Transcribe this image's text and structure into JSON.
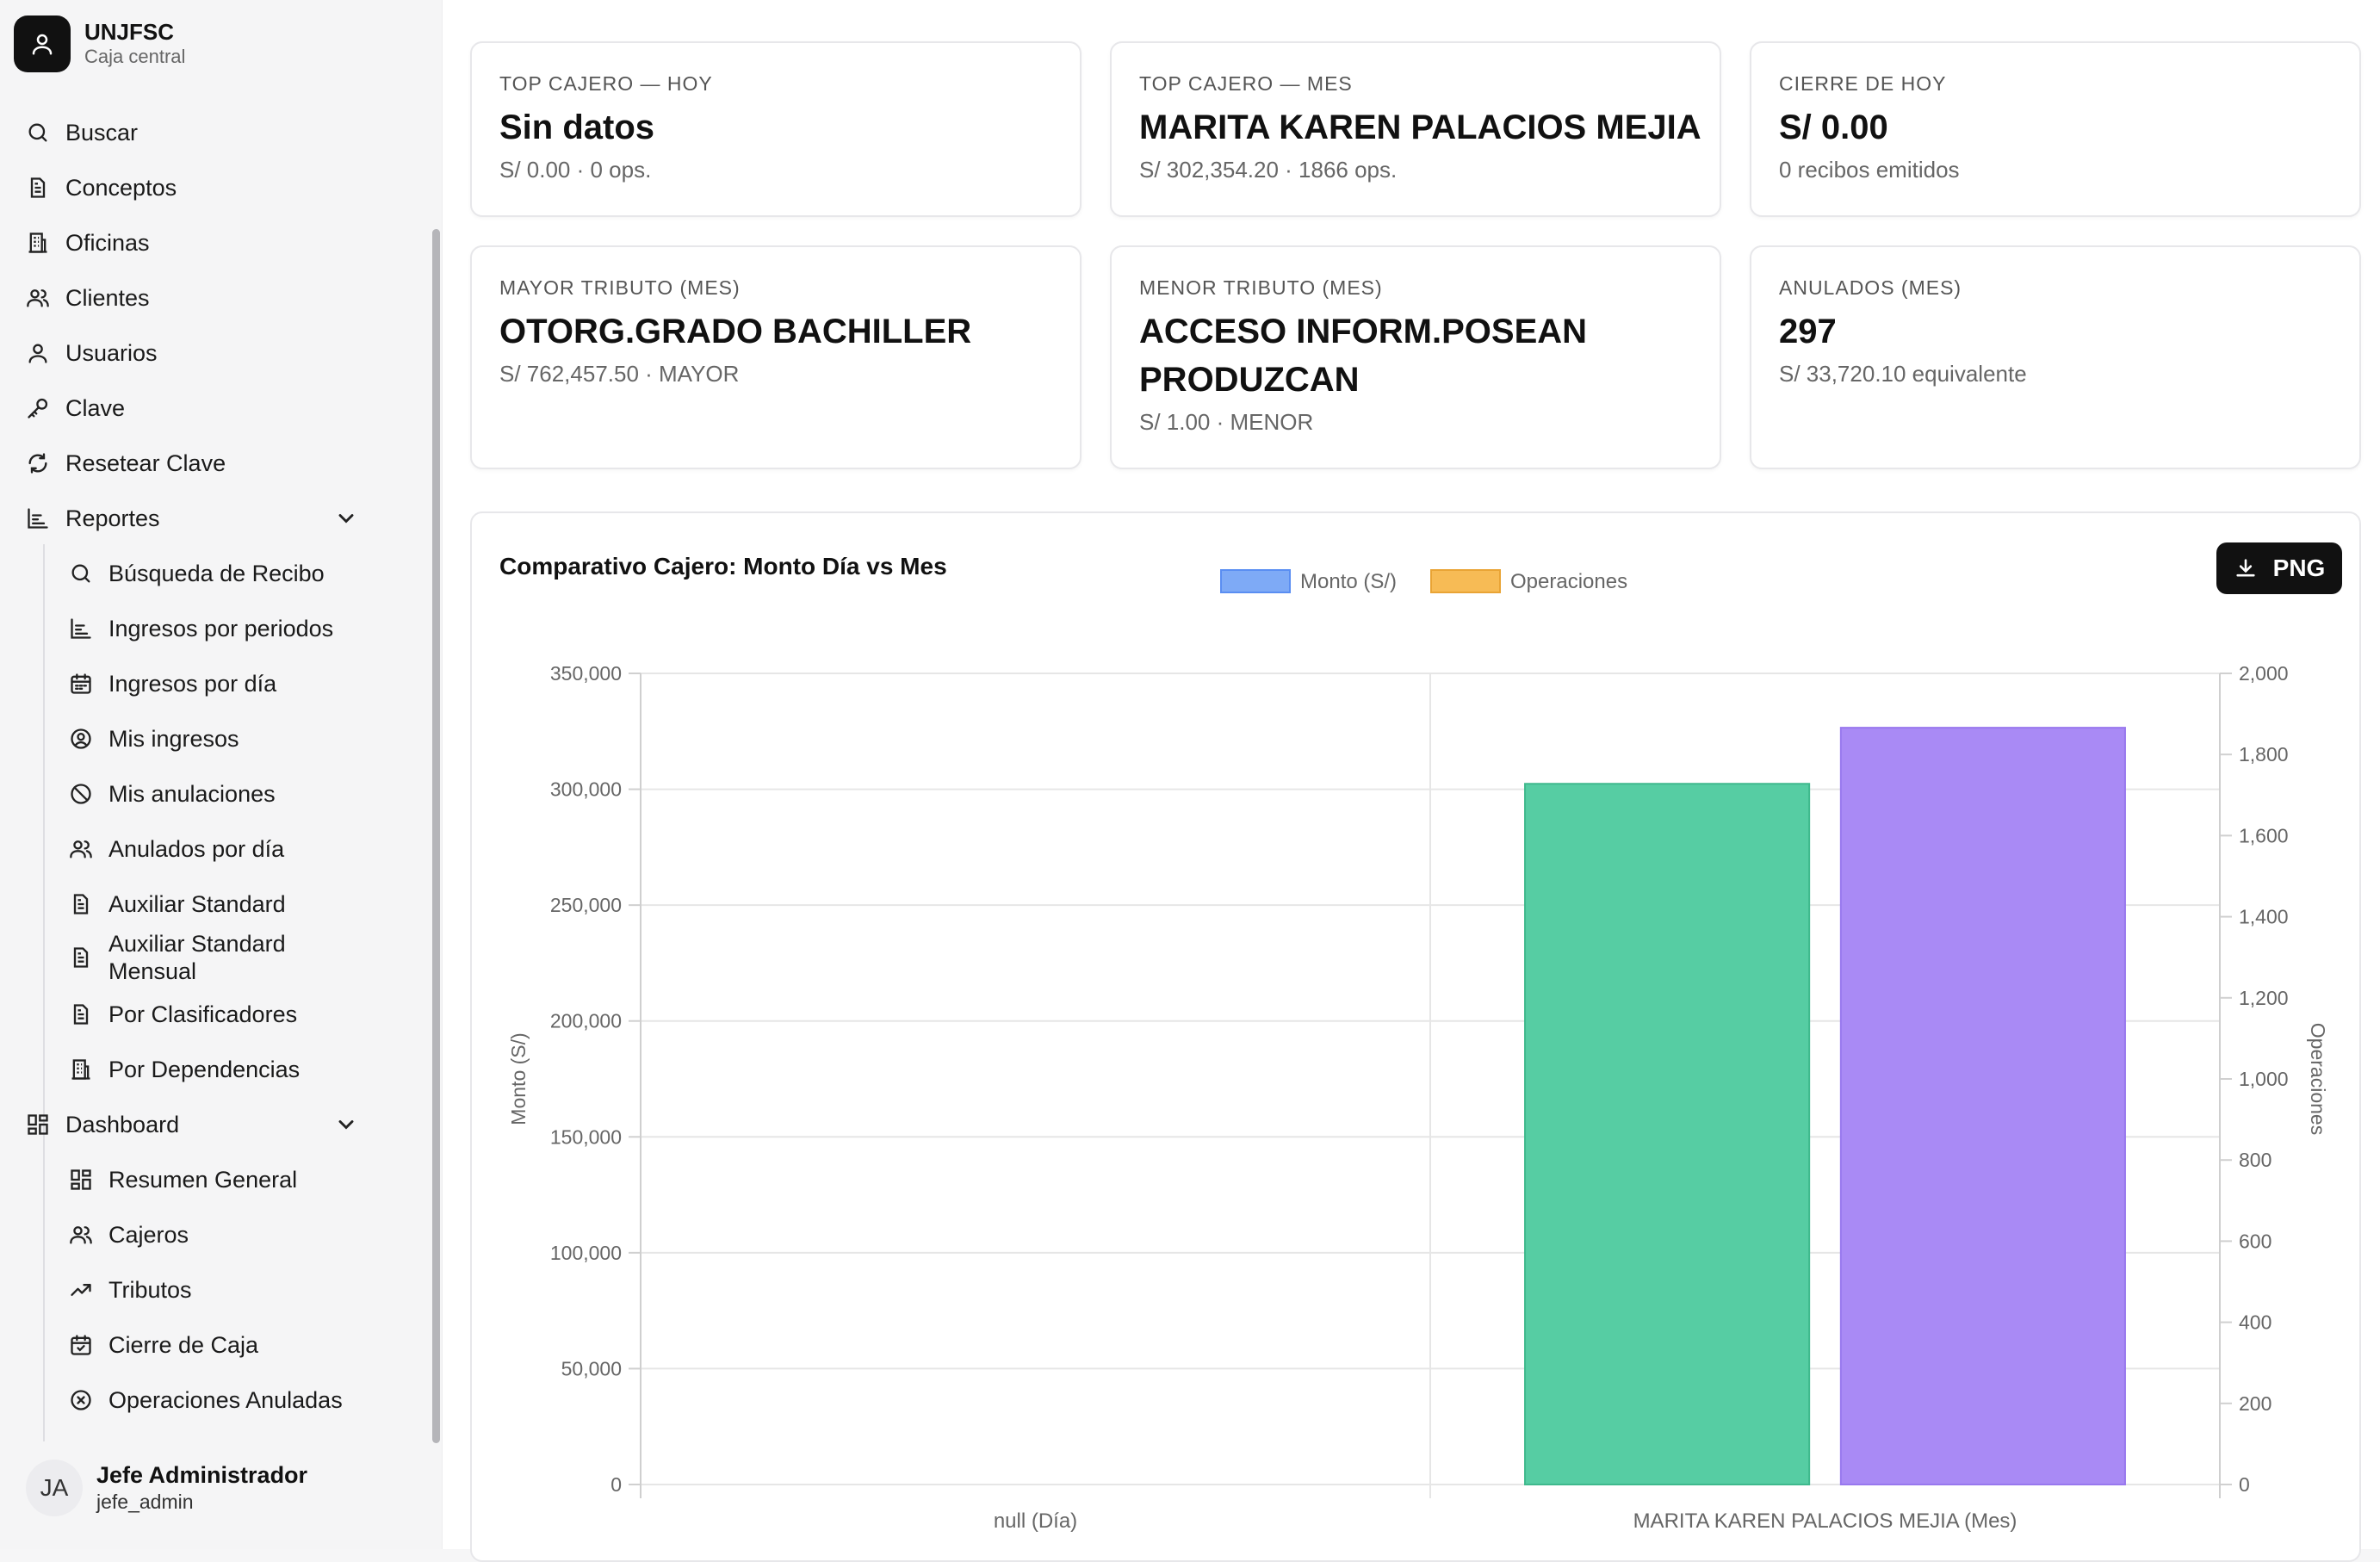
{
  "brand": {
    "name": "UNJFSC",
    "subtitle": "Caja central"
  },
  "sidebar": {
    "items": [
      {
        "label": "Buscar",
        "icon": "search-icon"
      },
      {
        "label": "Conceptos",
        "icon": "file-icon"
      },
      {
        "label": "Oficinas",
        "icon": "building-icon"
      },
      {
        "label": "Clientes",
        "icon": "users-icon"
      },
      {
        "label": "Usuarios",
        "icon": "user-icon"
      },
      {
        "label": "Clave",
        "icon": "key-icon"
      },
      {
        "label": "Resetear Clave",
        "icon": "refresh-icon"
      },
      {
        "label": "Reportes",
        "icon": "chart-icon"
      }
    ],
    "reportes": [
      {
        "label": "Búsqueda de Recibo",
        "icon": "search-icon"
      },
      {
        "label": "Ingresos por periodos",
        "icon": "chart-icon"
      },
      {
        "label": "Ingresos por día",
        "icon": "calendar-icon"
      },
      {
        "label": "Mis ingresos",
        "icon": "user-circle-icon"
      },
      {
        "label": "Mis anulaciones",
        "icon": "ban-icon"
      },
      {
        "label": "Anulados por día",
        "icon": "users-icon"
      },
      {
        "label": "Auxiliar Standard",
        "icon": "file-icon"
      },
      {
        "label_line1": "Auxiliar Standard",
        "label_line2": "Mensual",
        "icon": "file-icon"
      },
      {
        "label": "Por Clasificadores",
        "icon": "file-icon"
      },
      {
        "label": "Por Dependencias",
        "icon": "building-icon"
      }
    ],
    "dashboard_label": "Dashboard",
    "dashboard": [
      {
        "label": "Resumen General",
        "icon": "grid-icon"
      },
      {
        "label": "Cajeros",
        "icon": "users-icon"
      },
      {
        "label": "Tributos",
        "icon": "trend-icon"
      },
      {
        "label": "Cierre de Caja",
        "icon": "calendar-check-icon"
      },
      {
        "label": "Operaciones Anuladas",
        "icon": "x-circle-icon"
      }
    ]
  },
  "user": {
    "initials": "JA",
    "name": "Jefe Administrador",
    "login": "jefe_admin"
  },
  "cards": [
    {
      "label": "TOP CAJERO — HOY",
      "value": "Sin datos",
      "sub": "S/ 0.00 · 0 ops."
    },
    {
      "label": "TOP CAJERO — MES",
      "value": "MARITA KAREN PALACIOS MEJIA",
      "sub": "S/ 302,354.20 · 1866 ops."
    },
    {
      "label": "CIERRE DE HOY",
      "value": "S/ 0.00",
      "sub": "0 recibos emitidos"
    },
    {
      "label": "MAYOR TRIBUTO (MES)",
      "value": "OTORG.GRADO BACHILLER",
      "sub": "S/ 762,457.50 · MAYOR"
    },
    {
      "label": "MENOR TRIBUTO (MES)",
      "value": "ACCESO INFORM.POSEAN PRODUZCAN",
      "sub": "S/ 1.00 · MENOR"
    },
    {
      "label": "ANULADOS (MES)",
      "value": "297",
      "sub": "S/ 33,720.10 equivalente"
    }
  ],
  "chart": {
    "title": "Comparativo Cajero: Monto Día vs Mes",
    "png_label": "PNG"
  },
  "chart_data": {
    "type": "bar",
    "title": "Comparativo Cajero: Monto Día vs Mes",
    "categories": [
      "null (Día)",
      "MARITA KAREN PALACIOS MEJIA (Mes)"
    ],
    "series": [
      {
        "name": "Monto (S/)",
        "legend_color": "#7eaaf6",
        "bar_color": "#56cda3",
        "axis": "left",
        "values": [
          0,
          302354.2
        ]
      },
      {
        "name": "Operaciones",
        "legend_color": "#f7bb55",
        "bar_color": "#a98af5",
        "axis": "right",
        "values": [
          0,
          1866
        ]
      }
    ],
    "ylabel": "Monto (S/)",
    "y2label": "Operaciones",
    "ylim": [
      0,
      350000
    ],
    "y2lim": [
      0,
      2000
    ],
    "yticks": [
      "350,000",
      "300,000",
      "250,000",
      "200,000",
      "150,000",
      "100,000",
      "50,000",
      "0"
    ],
    "y2ticks": [
      "2,000",
      "1,800",
      "1,600",
      "1,400",
      "1,200",
      "1,000",
      "800",
      "600",
      "400",
      "200",
      "0"
    ],
    "legend_position": "top",
    "grid": true
  }
}
